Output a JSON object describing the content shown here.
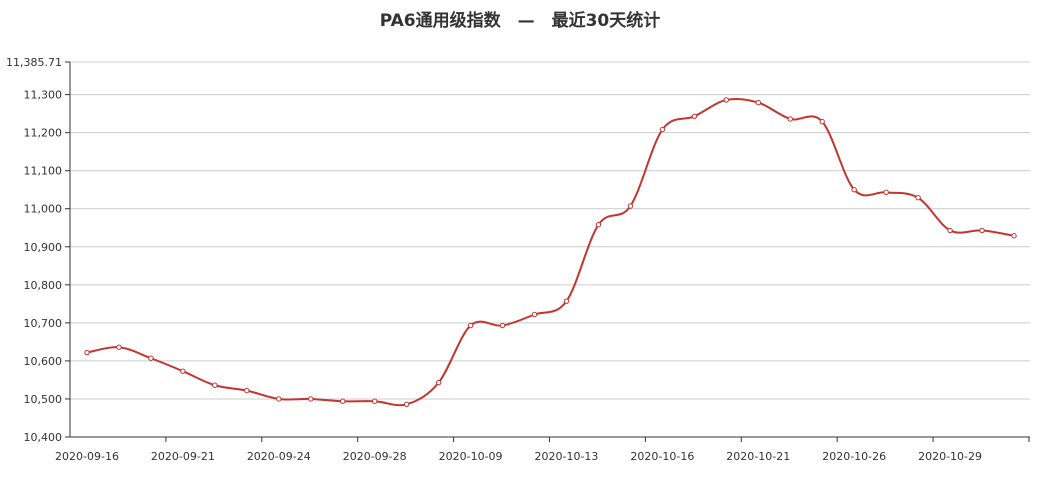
{
  "chart_data": {
    "type": "line",
    "title": "PA6通用级指数　—　最近30天统计",
    "xlabel": "",
    "ylabel": "",
    "ylim": [
      10400,
      11385.71
    ],
    "y_ticks": [
      "10,400",
      "10,500",
      "10,600",
      "10,700",
      "10,800",
      "10,900",
      "11,000",
      "11,100",
      "11,200",
      "11,300",
      "11,385.71"
    ],
    "x_tick_labels": [
      "2020-09-16",
      "2020-09-21",
      "2020-09-24",
      "2020-09-28",
      "2020-10-09",
      "2020-10-13",
      "2020-10-16",
      "2020-10-21",
      "2020-10-26",
      "2020-10-29"
    ],
    "grid": true,
    "legend": "none",
    "line_color": "#c23531",
    "series": [
      {
        "values": [
          10622,
          10636,
          10607,
          10573,
          10536,
          10522,
          10500,
          10500,
          10494,
          10494,
          10486,
          10543,
          10693,
          10693,
          10722,
          10757,
          10958,
          11007,
          11208,
          11243,
          11286,
          11279,
          11236,
          11229,
          11050,
          11043,
          11029,
          10943,
          10943,
          10929
        ]
      }
    ]
  }
}
